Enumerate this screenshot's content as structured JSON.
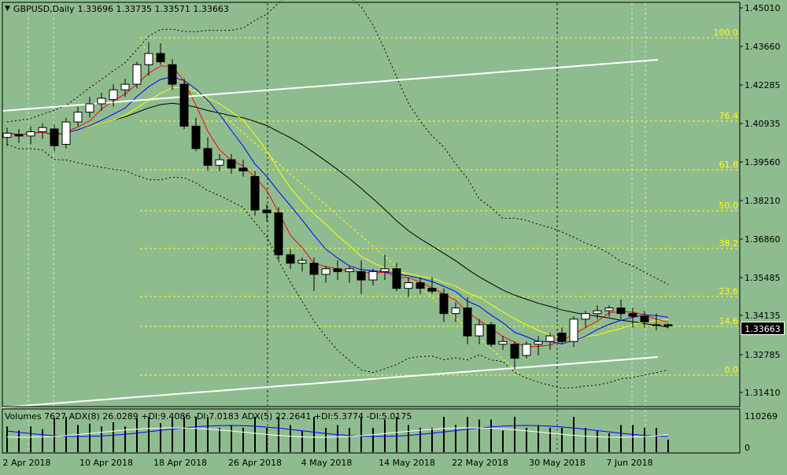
{
  "title": {
    "symbol": "GBPUSD,Daily",
    "ohlc": "1.33696 1.33735 1.33571 1.33663"
  },
  "price_axis": [
    "1.45010",
    "1.43660",
    "1.42285",
    "1.40935",
    "1.39560",
    "1.38210",
    "1.36860",
    "1.35485",
    "1.34135",
    "1.32785",
    "1.31410"
  ],
  "current_price": "1.33663",
  "fibo_levels": [
    "100.0",
    "76.4",
    "61.8",
    "50.0",
    "38.2",
    "23.6",
    "14.6",
    "0.0"
  ],
  "indicator": {
    "header": "Volumes 7627   ADX(8) 26.0289 +DI:9.4086 -DI:7.0183   ADX(5) 22.2641 +DI:5.3774 -DI:5.0175",
    "axis_top": "110269",
    "axis_bottom": "0"
  },
  "date_axis": [
    "2 Apr 2018",
    "10 Apr 2018",
    "18 Apr 2018",
    "26 Apr 2018",
    "4 May 2018",
    "14 May 2018",
    "22 May 2018",
    "30 May 2018",
    "7 Jun 2018"
  ],
  "colors": {
    "background": "#8fbc8f",
    "fibo": "#ffff00",
    "ma_fast": "#ff0000",
    "ma_mid": "#0000ff",
    "ma_slow": "#ffff00",
    "ma_long": "#000000",
    "trendline": "#ffffff"
  },
  "chart_data": {
    "type": "candlestick",
    "symbol": "GBPUSD",
    "timeframe": "Daily",
    "ylim": [
      1.308,
      1.452
    ],
    "candles": [
      {
        "o": 1.404,
        "h": 1.4075,
        "l": 1.401,
        "c": 1.4055
      },
      {
        "o": 1.405,
        "h": 1.407,
        "l": 1.402,
        "c": 1.4045
      },
      {
        "o": 1.4045,
        "h": 1.408,
        "l": 1.4015,
        "c": 1.406
      },
      {
        "o": 1.406,
        "h": 1.409,
        "l": 1.4035,
        "c": 1.4075
      },
      {
        "o": 1.407,
        "h": 1.4085,
        "l": 1.399,
        "c": 1.401
      },
      {
        "o": 1.4015,
        "h": 1.411,
        "l": 1.4,
        "c": 1.4095
      },
      {
        "o": 1.4095,
        "h": 1.415,
        "l": 1.408,
        "c": 1.413
      },
      {
        "o": 1.413,
        "h": 1.4185,
        "l": 1.411,
        "c": 1.416
      },
      {
        "o": 1.416,
        "h": 1.42,
        "l": 1.4135,
        "c": 1.418
      },
      {
        "o": 1.4175,
        "h": 1.423,
        "l": 1.415,
        "c": 1.421
      },
      {
        "o": 1.421,
        "h": 1.425,
        "l": 1.4185,
        "c": 1.423
      },
      {
        "o": 1.423,
        "h": 1.431,
        "l": 1.4215,
        "c": 1.43
      },
      {
        "o": 1.43,
        "h": 1.438,
        "l": 1.426,
        "c": 1.434
      },
      {
        "o": 1.434,
        "h": 1.4377,
        "l": 1.43,
        "c": 1.431
      },
      {
        "o": 1.43,
        "h": 1.432,
        "l": 1.421,
        "c": 1.423
      },
      {
        "o": 1.423,
        "h": 1.425,
        "l": 1.407,
        "c": 1.408
      },
      {
        "o": 1.408,
        "h": 1.411,
        "l": 1.399,
        "c": 1.4
      },
      {
        "o": 1.4,
        "h": 1.404,
        "l": 1.392,
        "c": 1.394
      },
      {
        "o": 1.394,
        "h": 1.398,
        "l": 1.392,
        "c": 1.396
      },
      {
        "o": 1.396,
        "h": 1.398,
        "l": 1.391,
        "c": 1.393
      },
      {
        "o": 1.393,
        "h": 1.396,
        "l": 1.39,
        "c": 1.392
      },
      {
        "o": 1.39,
        "h": 1.392,
        "l": 1.376,
        "c": 1.378
      },
      {
        "o": 1.378,
        "h": 1.38,
        "l": 1.374,
        "c": 1.377
      },
      {
        "o": 1.377,
        "h": 1.379,
        "l": 1.36,
        "c": 1.362
      },
      {
        "o": 1.362,
        "h": 1.364,
        "l": 1.357,
        "c": 1.359
      },
      {
        "o": 1.359,
        "h": 1.361,
        "l": 1.356,
        "c": 1.36
      },
      {
        "o": 1.359,
        "h": 1.361,
        "l": 1.349,
        "c": 1.355
      },
      {
        "o": 1.355,
        "h": 1.358,
        "l": 1.352,
        "c": 1.357
      },
      {
        "o": 1.357,
        "h": 1.36,
        "l": 1.353,
        "c": 1.356
      },
      {
        "o": 1.356,
        "h": 1.358,
        "l": 1.352,
        "c": 1.357
      },
      {
        "o": 1.356,
        "h": 1.36,
        "l": 1.348,
        "c": 1.353
      },
      {
        "o": 1.353,
        "h": 1.357,
        "l": 1.351,
        "c": 1.356
      },
      {
        "o": 1.356,
        "h": 1.362,
        "l": 1.353,
        "c": 1.357
      },
      {
        "o": 1.357,
        "h": 1.359,
        "l": 1.349,
        "c": 1.35
      },
      {
        "o": 1.35,
        "h": 1.354,
        "l": 1.347,
        "c": 1.352
      },
      {
        "o": 1.352,
        "h": 1.354,
        "l": 1.348,
        "c": 1.35
      },
      {
        "o": 1.35,
        "h": 1.354,
        "l": 1.348,
        "c": 1.349
      },
      {
        "o": 1.348,
        "h": 1.35,
        "l": 1.338,
        "c": 1.341
      },
      {
        "o": 1.341,
        "h": 1.345,
        "l": 1.338,
        "c": 1.343
      },
      {
        "o": 1.343,
        "h": 1.347,
        "l": 1.33,
        "c": 1.333
      },
      {
        "o": 1.333,
        "h": 1.339,
        "l": 1.33,
        "c": 1.337
      },
      {
        "o": 1.337,
        "h": 1.338,
        "l": 1.329,
        "c": 1.33
      },
      {
        "o": 1.33,
        "h": 1.333,
        "l": 1.328,
        "c": 1.331
      },
      {
        "o": 1.33,
        "h": 1.331,
        "l": 1.321,
        "c": 1.325
      },
      {
        "o": 1.326,
        "h": 1.331,
        "l": 1.325,
        "c": 1.33
      },
      {
        "o": 1.33,
        "h": 1.333,
        "l": 1.326,
        "c": 1.331
      },
      {
        "o": 1.331,
        "h": 1.334,
        "l": 1.328,
        "c": 1.333
      },
      {
        "o": 1.334,
        "h": 1.336,
        "l": 1.33,
        "c": 1.331
      },
      {
        "o": 1.331,
        "h": 1.34,
        "l": 1.329,
        "c": 1.339
      },
      {
        "o": 1.339,
        "h": 1.342,
        "l": 1.336,
        "c": 1.341
      },
      {
        "o": 1.341,
        "h": 1.344,
        "l": 1.339,
        "c": 1.342
      },
      {
        "o": 1.342,
        "h": 1.344,
        "l": 1.34,
        "c": 1.343
      },
      {
        "o": 1.343,
        "h": 1.346,
        "l": 1.339,
        "c": 1.341
      },
      {
        "o": 1.341,
        "h": 1.343,
        "l": 1.336,
        "c": 1.34
      },
      {
        "o": 1.34,
        "h": 1.342,
        "l": 1.336,
        "c": 1.338
      },
      {
        "o": 1.337,
        "h": 1.341,
        "l": 1.335,
        "c": 1.337
      },
      {
        "o": 1.337,
        "h": 1.3374,
        "l": 1.3357,
        "c": 1.3366
      }
    ],
    "indicators": [
      "Volumes",
      "ADX(8)",
      "ADX(5)"
    ],
    "fibonacci": [
      "100.0",
      "76.4",
      "61.8",
      "50.0",
      "38.2",
      "23.6",
      "14.6",
      "0.0"
    ]
  }
}
